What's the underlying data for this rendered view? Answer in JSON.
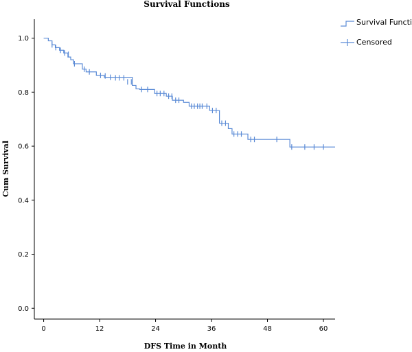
{
  "chart_data": {
    "type": "line",
    "title": "Survival Functions",
    "xlabel": "DFS Time in Month",
    "ylabel": "Cum Survival",
    "xlim": [
      -2,
      62.5
    ],
    "ylim": [
      -0.04,
      1.07
    ],
    "xticks": [
      0,
      12,
      24,
      36,
      48,
      60
    ],
    "yticks": [
      0.0,
      0.2,
      0.4,
      0.6,
      0.8,
      1.0
    ],
    "yticklabels": [
      "0.0",
      "0.2",
      "0.4",
      "0.6",
      "0.8",
      "1.0"
    ],
    "legend_placement": "top-right",
    "grid": false,
    "color": "#5b8bd6",
    "series": [
      {
        "name": "Survival Function",
        "steps": [
          [
            0,
            1.0
          ],
          [
            1,
            0.99
          ],
          [
            1.8,
            0.975
          ],
          [
            2.5,
            0.965
          ],
          [
            3.4,
            0.955
          ],
          [
            4.3,
            0.945
          ],
          [
            5.2,
            0.93
          ],
          [
            5.8,
            0.92
          ],
          [
            6.4,
            0.905
          ],
          [
            8.3,
            0.885
          ],
          [
            9.1,
            0.875
          ],
          [
            11.3,
            0.862
          ],
          [
            13.0,
            0.855
          ],
          [
            19.0,
            0.825
          ],
          [
            19.8,
            0.812
          ],
          [
            20.6,
            0.81
          ],
          [
            23.8,
            0.795
          ],
          [
            26.3,
            0.785
          ],
          [
            27.6,
            0.77
          ],
          [
            30.0,
            0.762
          ],
          [
            31.2,
            0.748
          ],
          [
            35.6,
            0.732
          ],
          [
            37.7,
            0.685
          ],
          [
            39.6,
            0.665
          ],
          [
            40.4,
            0.645
          ],
          [
            43.8,
            0.625
          ],
          [
            52.8,
            0.597
          ],
          [
            62.5,
            0.597
          ]
        ]
      },
      {
        "name": "Censored",
        "points": [
          [
            1.8,
            0.975
          ],
          [
            2.6,
            0.965
          ],
          [
            3.6,
            0.955
          ],
          [
            4.5,
            0.945
          ],
          [
            5.3,
            0.94
          ],
          [
            6.6,
            0.905
          ],
          [
            8.7,
            0.885
          ],
          [
            9.8,
            0.875
          ],
          [
            12.2,
            0.862
          ],
          [
            13.2,
            0.86
          ],
          [
            14.3,
            0.855
          ],
          [
            15.4,
            0.853
          ],
          [
            16.2,
            0.853
          ],
          [
            17.2,
            0.853
          ],
          [
            18.0,
            0.838
          ],
          [
            18.8,
            0.838
          ],
          [
            21.0,
            0.81
          ],
          [
            22.3,
            0.81
          ],
          [
            24.3,
            0.795
          ],
          [
            25.0,
            0.795
          ],
          [
            25.8,
            0.795
          ],
          [
            26.8,
            0.785
          ],
          [
            27.5,
            0.785
          ],
          [
            28.3,
            0.77
          ],
          [
            29.0,
            0.77
          ],
          [
            31.7,
            0.748
          ],
          [
            32.3,
            0.748
          ],
          [
            33.0,
            0.748
          ],
          [
            33.5,
            0.748
          ],
          [
            34.0,
            0.748
          ],
          [
            35.0,
            0.748
          ],
          [
            36.2,
            0.732
          ],
          [
            37.0,
            0.732
          ],
          [
            38.2,
            0.685
          ],
          [
            39.0,
            0.685
          ],
          [
            40.8,
            0.645
          ],
          [
            41.6,
            0.645
          ],
          [
            42.4,
            0.645
          ],
          [
            44.4,
            0.625
          ],
          [
            45.2,
            0.625
          ],
          [
            50.0,
            0.625
          ],
          [
            53.2,
            0.597
          ],
          [
            56.0,
            0.597
          ],
          [
            58.0,
            0.597
          ],
          [
            60.0,
            0.597
          ]
        ]
      }
    ]
  }
}
